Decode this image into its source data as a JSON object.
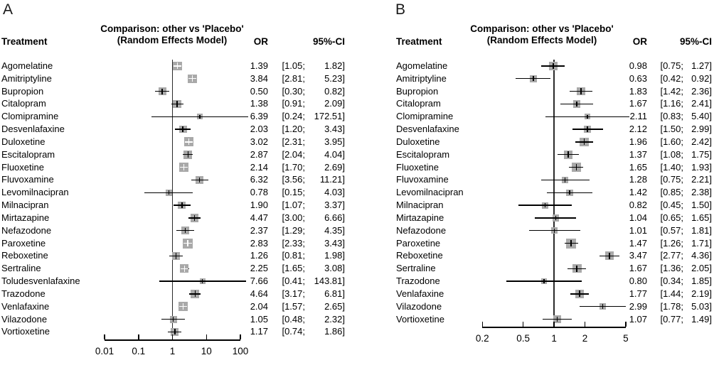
{
  "chart_data": [
    {
      "type": "scatter",
      "variant": "forest-plot",
      "label": "A",
      "title": "Comparison: other vs 'Placebo'",
      "subtitle": "(Random Effects Model)",
      "columns": {
        "treatment": "Treatment",
        "or": "OR",
        "ci": "95%-CI"
      },
      "x_axis": {
        "scale": "log",
        "tick_labels": [
          "0.01",
          "0.1",
          "1",
          "10",
          "100"
        ],
        "tick_values": [
          0.01,
          0.1,
          1,
          10,
          100
        ],
        "ref_line": 1,
        "legend": "grid off"
      },
      "rows": [
        {
          "treatment": "Agomelatine",
          "or": 1.39,
          "lo": 1.05,
          "hi": 1.82,
          "or_label": "1.39",
          "ci_label": "[1.05; 1.82]"
        },
        {
          "treatment": "Amitriptyline",
          "or": 3.84,
          "lo": 2.81,
          "hi": 5.23,
          "or_label": "3.84",
          "ci_label": "[2.81; 5.23]"
        },
        {
          "treatment": "Bupropion",
          "or": 0.5,
          "lo": 0.3,
          "hi": 0.82,
          "or_label": "0.50",
          "ci_label": "[0.30; 0.82]"
        },
        {
          "treatment": "Citalopram",
          "or": 1.38,
          "lo": 0.91,
          "hi": 2.09,
          "or_label": "1.38",
          "ci_label": "[0.91; 2.09]"
        },
        {
          "treatment": "Clomipramine",
          "or": 6.39,
          "lo": 0.24,
          "hi": 172.51,
          "or_label": "6.39",
          "ci_label": "[0.24; 172.51]"
        },
        {
          "treatment": "Desvenlafaxine",
          "or": 2.03,
          "lo": 1.2,
          "hi": 3.43,
          "or_label": "2.03",
          "ci_label": "[1.20; 3.43]"
        },
        {
          "treatment": "Duloxetine",
          "or": 3.02,
          "lo": 2.31,
          "hi": 3.95,
          "or_label": "3.02",
          "ci_label": "[2.31; 3.95]"
        },
        {
          "treatment": "Escitalopram",
          "or": 2.87,
          "lo": 2.04,
          "hi": 4.04,
          "or_label": "2.87",
          "ci_label": "[2.04; 4.04]"
        },
        {
          "treatment": "Fluoxetine",
          "or": 2.14,
          "lo": 1.7,
          "hi": 2.69,
          "or_label": "2.14",
          "ci_label": "[1.70; 2.69]"
        },
        {
          "treatment": "Fluvoxamine",
          "or": 6.32,
          "lo": 3.56,
          "hi": 11.21,
          "or_label": "6.32",
          "ci_label": "[3.56; 11.21]"
        },
        {
          "treatment": "Levomilnacipran",
          "or": 0.78,
          "lo": 0.15,
          "hi": 4.03,
          "or_label": "0.78",
          "ci_label": "[0.15; 4.03]"
        },
        {
          "treatment": "Milnacipran",
          "or": 1.9,
          "lo": 1.07,
          "hi": 3.37,
          "or_label": "1.90",
          "ci_label": "[1.07; 3.37]"
        },
        {
          "treatment": "Mirtazapine",
          "or": 4.47,
          "lo": 3.0,
          "hi": 6.66,
          "or_label": "4.47",
          "ci_label": "[3.00; 6.66]"
        },
        {
          "treatment": "Nefazodone",
          "or": 2.37,
          "lo": 1.29,
          "hi": 4.35,
          "or_label": "2.37",
          "ci_label": "[1.29; 4.35]"
        },
        {
          "treatment": "Paroxetine",
          "or": 2.83,
          "lo": 2.33,
          "hi": 3.43,
          "or_label": "2.83",
          "ci_label": "[2.33; 3.43]"
        },
        {
          "treatment": "Reboxetine",
          "or": 1.26,
          "lo": 0.81,
          "hi": 1.98,
          "or_label": "1.26",
          "ci_label": "[0.81; 1.98]"
        },
        {
          "treatment": "Sertraline",
          "or": 2.25,
          "lo": 1.65,
          "hi": 3.08,
          "or_label": "2.25",
          "ci_label": "[1.65; 3.08]"
        },
        {
          "treatment": "Toludesvenlafaxine",
          "or": 7.66,
          "lo": 0.41,
          "hi": 143.81,
          "or_label": "7.66",
          "ci_label": "[0.41; 143.81]"
        },
        {
          "treatment": "Trazodone",
          "or": 4.64,
          "lo": 3.17,
          "hi": 6.81,
          "or_label": "4.64",
          "ci_label": "[3.17; 6.81]"
        },
        {
          "treatment": "Venlafaxine",
          "or": 2.04,
          "lo": 1.57,
          "hi": 2.65,
          "or_label": "2.04",
          "ci_label": "[1.57; 2.65]"
        },
        {
          "treatment": "Vilazodone",
          "or": 1.05,
          "lo": 0.48,
          "hi": 2.32,
          "or_label": "1.05",
          "ci_label": "[0.48; 2.32]"
        },
        {
          "treatment": "Vortioxetine",
          "or": 1.17,
          "lo": 0.74,
          "hi": 1.86,
          "or_label": "1.17",
          "ci_label": "[0.74; 1.86]"
        }
      ]
    },
    {
      "type": "scatter",
      "variant": "forest-plot",
      "label": "B",
      "title": "Comparison: other vs 'Placebo'",
      "subtitle": "(Random Effects Model)",
      "columns": {
        "treatment": "Treatment",
        "or": "OR",
        "ci": "95%-CI"
      },
      "x_axis": {
        "scale": "log",
        "tick_labels": [
          "0.2",
          "0.5",
          "1",
          "2",
          "5"
        ],
        "tick_values": [
          0.2,
          0.5,
          1,
          2,
          5
        ],
        "ref_line": 1,
        "legend": "grid off"
      },
      "rows": [
        {
          "treatment": "Agomelatine",
          "or": 0.98,
          "lo": 0.75,
          "hi": 1.27,
          "or_label": "0.98",
          "ci_label": "[0.75; 1.27]"
        },
        {
          "treatment": "Amitriptyline",
          "or": 0.63,
          "lo": 0.42,
          "hi": 0.92,
          "or_label": "0.63",
          "ci_label": "[0.42; 0.92]"
        },
        {
          "treatment": "Bupropion",
          "or": 1.83,
          "lo": 1.42,
          "hi": 2.36,
          "or_label": "1.83",
          "ci_label": "[1.42; 2.36]"
        },
        {
          "treatment": "Citalopram",
          "or": 1.67,
          "lo": 1.16,
          "hi": 2.41,
          "or_label": "1.67",
          "ci_label": "[1.16; 2.41]"
        },
        {
          "treatment": "Clomipramine",
          "or": 2.11,
          "lo": 0.83,
          "hi": 5.4,
          "or_label": "2.11",
          "ci_label": "[0.83; 5.40]"
        },
        {
          "treatment": "Desvenlafaxine",
          "or": 2.12,
          "lo": 1.5,
          "hi": 2.99,
          "or_label": "2.12",
          "ci_label": "[1.50; 2.99]"
        },
        {
          "treatment": "Duloxetine",
          "or": 1.96,
          "lo": 1.6,
          "hi": 2.42,
          "or_label": "1.96",
          "ci_label": "[1.60; 2.42]"
        },
        {
          "treatment": "Escitalopram",
          "or": 1.37,
          "lo": 1.08,
          "hi": 1.75,
          "or_label": "1.37",
          "ci_label": "[1.08; 1.75]"
        },
        {
          "treatment": "Fluoxetine",
          "or": 1.65,
          "lo": 1.4,
          "hi": 1.93,
          "or_label": "1.65",
          "ci_label": "[1.40; 1.93]"
        },
        {
          "treatment": "Fluvoxamine",
          "or": 1.28,
          "lo": 0.75,
          "hi": 2.21,
          "or_label": "1.28",
          "ci_label": "[0.75; 2.21]"
        },
        {
          "treatment": "Levomilnacipran",
          "or": 1.42,
          "lo": 0.85,
          "hi": 2.38,
          "or_label": "1.42",
          "ci_label": "[0.85; 2.38]"
        },
        {
          "treatment": "Milnacipran",
          "or": 0.82,
          "lo": 0.45,
          "hi": 1.5,
          "or_label": "0.82",
          "ci_label": "[0.45; 1.50]"
        },
        {
          "treatment": "Mirtazapine",
          "or": 1.04,
          "lo": 0.65,
          "hi": 1.65,
          "or_label": "1.04",
          "ci_label": "[0.65; 1.65]"
        },
        {
          "treatment": "Nefazodone",
          "or": 1.01,
          "lo": 0.57,
          "hi": 1.81,
          "or_label": "1.01",
          "ci_label": "[0.57; 1.81]"
        },
        {
          "treatment": "Paroxetine",
          "or": 1.47,
          "lo": 1.26,
          "hi": 1.71,
          "or_label": "1.47",
          "ci_label": "[1.26; 1.71]"
        },
        {
          "treatment": "Reboxetine",
          "or": 3.47,
          "lo": 2.77,
          "hi": 4.36,
          "or_label": "3.47",
          "ci_label": "[2.77; 4.36]"
        },
        {
          "treatment": "Sertraline",
          "or": 1.67,
          "lo": 1.36,
          "hi": 2.05,
          "or_label": "1.67",
          "ci_label": "[1.36; 2.05]"
        },
        {
          "treatment": "Trazodone",
          "or": 0.8,
          "lo": 0.34,
          "hi": 1.85,
          "or_label": "0.80",
          "ci_label": "[0.34; 1.85]"
        },
        {
          "treatment": "Venlafaxine",
          "or": 1.77,
          "lo": 1.44,
          "hi": 2.19,
          "or_label": "1.77",
          "ci_label": "[1.44; 2.19]"
        },
        {
          "treatment": "Vilazodone",
          "or": 2.99,
          "lo": 1.78,
          "hi": 5.03,
          "or_label": "2.99",
          "ci_label": "[1.78; 5.03]"
        },
        {
          "treatment": "Vortioxetine",
          "or": 1.07,
          "lo": 0.77,
          "hi": 1.49,
          "or_label": "1.07",
          "ci_label": "[0.77; 1.49]"
        }
      ]
    }
  ],
  "colors": {
    "square": "#a9a9a9",
    "line": "#000000",
    "text": "#000000",
    "background": "#ffffff"
  }
}
